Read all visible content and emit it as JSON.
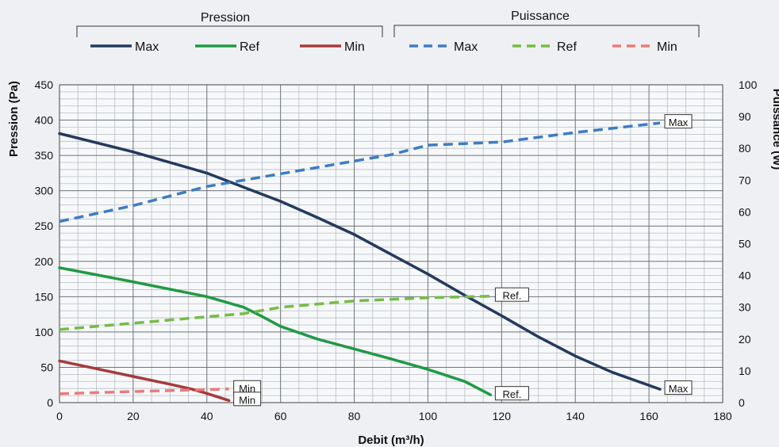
{
  "legend": {
    "group_pression": "Pression",
    "group_puissance": "Puissance",
    "items": [
      {
        "label": "Max",
        "color": "#243a5e",
        "dashed": false
      },
      {
        "label": "Ref",
        "color": "#1f9a44",
        "dashed": false
      },
      {
        "label": "Min",
        "color": "#a53b3b",
        "dashed": false
      },
      {
        "label": "Max",
        "color": "#3d7cc4",
        "dashed": true
      },
      {
        "label": "Ref",
        "color": "#73bd45",
        "dashed": true
      },
      {
        "label": "Min",
        "color": "#ea7b7b",
        "dashed": true
      }
    ]
  },
  "chart_data": {
    "type": "line",
    "xlabel": "Debit (m³/h)",
    "ylabel_left": "Pression (Pa)",
    "ylabel_right": "Puissance (W)",
    "xlim": [
      0,
      180
    ],
    "ylim_left": [
      0,
      450
    ],
    "ylim_right": [
      0,
      100
    ],
    "x_ticks": [
      0,
      20,
      40,
      60,
      80,
      100,
      120,
      140,
      160,
      180
    ],
    "y_ticks_left": [
      0,
      50,
      100,
      150,
      200,
      250,
      300,
      350,
      400,
      450
    ],
    "y_ticks_right": [
      0,
      10,
      20,
      30,
      40,
      50,
      60,
      70,
      80,
      90,
      100
    ],
    "grid": true,
    "series": [
      {
        "name": "Max",
        "group": "Pression",
        "axis": "left",
        "color": "#243a5e",
        "dashed": false,
        "x": [
          0,
          20,
          40,
          50,
          60,
          70,
          80,
          90,
          100,
          110,
          120,
          130,
          140,
          150,
          163
        ],
        "y": [
          381,
          355,
          325,
          305,
          285,
          262,
          238,
          210,
          182,
          152,
          123,
          93,
          66,
          43,
          19
        ]
      },
      {
        "name": "Ref",
        "group": "Pression",
        "axis": "left",
        "color": "#1f9a44",
        "dashed": false,
        "x": [
          0,
          20,
          40,
          50,
          55,
          60,
          70,
          80,
          90,
          100,
          110,
          117
        ],
        "y": [
          191,
          171,
          150,
          135,
          122,
          108,
          90,
          76,
          62,
          47,
          30,
          11
        ]
      },
      {
        "name": "Min",
        "group": "Pression",
        "axis": "left",
        "color": "#a53b3b",
        "dashed": false,
        "x": [
          0,
          10,
          20,
          30,
          36,
          40,
          46
        ],
        "y": [
          59,
          48,
          37,
          26,
          19,
          13,
          3
        ]
      },
      {
        "name": "Max",
        "group": "Puissance",
        "axis": "right",
        "color": "#3d7cc4",
        "dashed": true,
        "x": [
          0,
          20,
          40,
          60,
          80,
          90,
          100,
          120,
          140,
          163
        ],
        "y": [
          57,
          62,
          68,
          72,
          76,
          78,
          81,
          82,
          85,
          88
        ]
      },
      {
        "name": "Ref",
        "group": "Puissance",
        "axis": "right",
        "color": "#73bd45",
        "dashed": true,
        "x": [
          0,
          20,
          40,
          50,
          60,
          80,
          100,
          117
        ],
        "y": [
          23,
          25,
          27,
          28,
          30,
          32,
          33,
          33.5
        ]
      },
      {
        "name": "Min",
        "group": "Puissance",
        "axis": "right",
        "color": "#ea7b7b",
        "dashed": true,
        "x": [
          0,
          20,
          40,
          46
        ],
        "y": [
          2.8,
          3.5,
          4.1,
          4.3
        ]
      }
    ],
    "annotations": [
      {
        "text": "Max",
        "x": 163,
        "y": 88,
        "axis": "right"
      },
      {
        "text": "Max",
        "x": 163,
        "y": 19,
        "axis": "left"
      },
      {
        "text": "Ref.",
        "x": 117,
        "y": 33.5,
        "axis": "right"
      },
      {
        "text": "Ref.",
        "x": 117,
        "y": 11,
        "axis": "left"
      },
      {
        "text": "Min",
        "x": 46,
        "y": 4.3,
        "axis": "right"
      },
      {
        "text": "Min",
        "x": 46,
        "y": 3,
        "axis": "left"
      }
    ]
  }
}
